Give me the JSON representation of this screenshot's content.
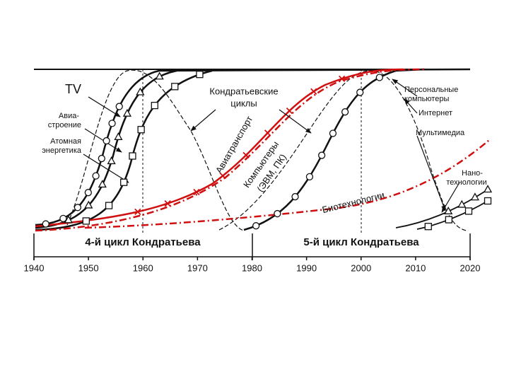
{
  "labels": {
    "tv": "TV",
    "aviation": [
      "Авиа-",
      "строение"
    ],
    "atomic": [
      "Атомная",
      "энергетика"
    ],
    "cycles": [
      "Кондратьевские",
      "циклы"
    ],
    "air_transport": "Авиатранспорт",
    "computers": [
      "Компьютеры",
      "(ЭВМ, ПК)"
    ],
    "biotech": "Биотехнологии",
    "pc": [
      "Персональные",
      "компьютеры"
    ],
    "internet": "Интернет",
    "multimedia": "Мультимедиа",
    "nano": [
      "Нано-",
      "технологии"
    ]
  },
  "bands": [
    "4-й цикл Кондратьева",
    "5-й цикл Кондратьева"
  ],
  "years": [
    "1940",
    "1950",
    "1960",
    "1970",
    "1980",
    "1990",
    "2000",
    "2010",
    "2020"
  ]
}
